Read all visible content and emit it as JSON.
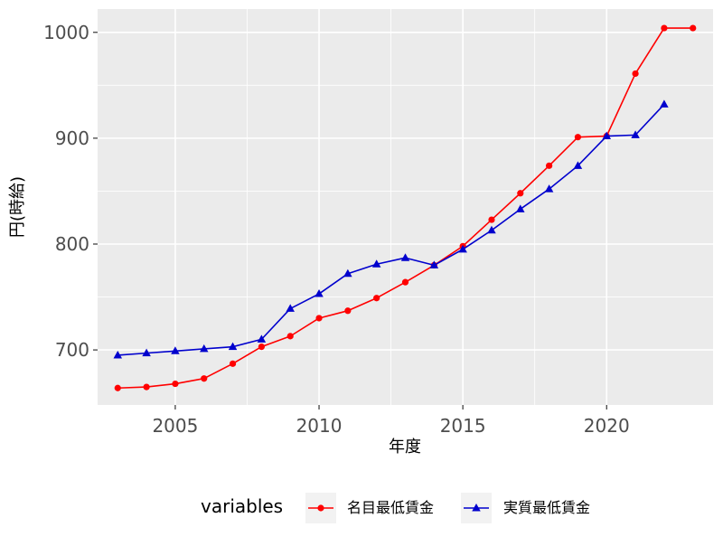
{
  "chart_data": {
    "type": "line",
    "title": "",
    "xlabel": "年度",
    "ylabel": "円(時給)",
    "xlim": [
      2002.3,
      2023.7
    ],
    "ylim": [
      648,
      1022
    ],
    "x_ticks": [
      2005,
      2010,
      2015,
      2020
    ],
    "y_ticks": [
      700,
      800,
      900,
      1000
    ],
    "x_tick_labels": [
      "2005",
      "2010",
      "2015",
      "2020"
    ],
    "y_tick_labels": [
      "700",
      "800",
      "900",
      "1000"
    ],
    "grid": true,
    "legend": {
      "title": "variables",
      "position": "bottom"
    },
    "series": [
      {
        "name": "名目最低賃金",
        "color": "#ff0000",
        "marker": "circle",
        "x": [
          2003,
          2004,
          2005,
          2006,
          2007,
          2008,
          2009,
          2010,
          2011,
          2012,
          2013,
          2014,
          2015,
          2016,
          2017,
          2018,
          2019,
          2020,
          2021,
          2022,
          2023
        ],
        "values": [
          664,
          665,
          668,
          673,
          687,
          703,
          713,
          730,
          737,
          749,
          764,
          780,
          798,
          823,
          848,
          874,
          901,
          902,
          961,
          1004,
          1004
        ]
      },
      {
        "name": "実質最低賃金",
        "color": "#0000cd",
        "marker": "triangle",
        "x": [
          2003,
          2004,
          2005,
          2006,
          2007,
          2008,
          2009,
          2010,
          2011,
          2012,
          2013,
          2014,
          2015,
          2016,
          2017,
          2018,
          2019,
          2020,
          2021,
          2022
        ],
        "values": [
          695,
          697,
          699,
          701,
          703,
          710,
          739,
          753,
          772,
          781,
          787,
          780,
          795,
          813,
          833,
          852,
          874,
          902,
          903,
          932
        ]
      }
    ]
  }
}
